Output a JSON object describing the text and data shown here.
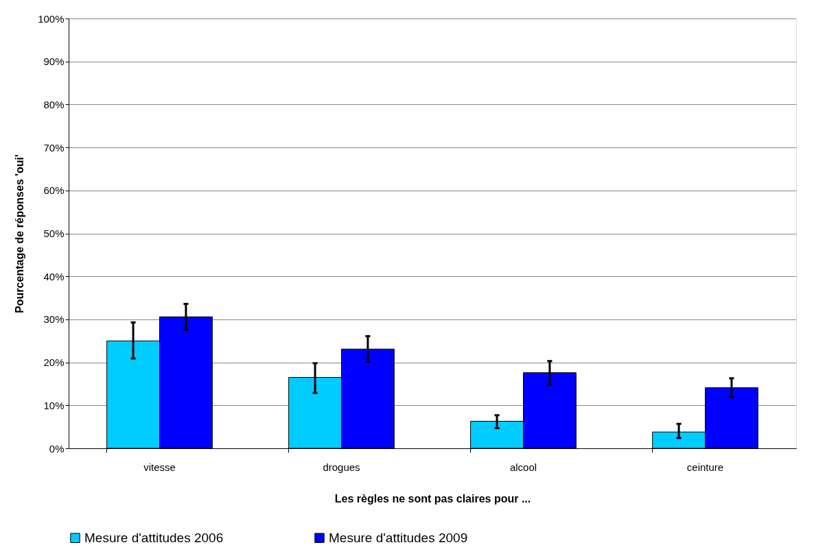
{
  "chart_data": {
    "type": "bar",
    "xlabel": "Les règles ne sont pas claires pour ...",
    "ylabel": "Pourcentage de réponses 'oui'",
    "categories": [
      "vitesse",
      "drogues",
      "alcool",
      "ceinture"
    ],
    "series": [
      {
        "name": "Mesure d'attitudes 2006",
        "color": "#00ccff",
        "values": [
          25.0,
          16.5,
          6.3,
          3.8
        ],
        "errors": [
          [
            20.9,
            29.3
          ],
          [
            12.9,
            19.8
          ],
          [
            4.7,
            7.7
          ],
          [
            2.4,
            5.7
          ]
        ]
      },
      {
        "name": "Mesure d'attitudes 2009",
        "color": "#0000ff",
        "values": [
          30.6,
          23.1,
          17.6,
          14.1
        ],
        "errors": [
          [
            27.6,
            33.6
          ],
          [
            20.1,
            26.1
          ],
          [
            14.8,
            20.3
          ],
          [
            11.9,
            16.3
          ]
        ]
      }
    ],
    "ylim": [
      0,
      100
    ],
    "yticks": [
      {
        "value": 0,
        "label": "0%"
      },
      {
        "value": 10,
        "label": "10%"
      },
      {
        "value": 20,
        "label": "20%"
      },
      {
        "value": 30,
        "label": "30%"
      },
      {
        "value": 40,
        "label": "40%"
      },
      {
        "value": 50,
        "label": "50%"
      },
      {
        "value": 60,
        "label": "60%"
      },
      {
        "value": 70,
        "label": "70%"
      },
      {
        "value": 80,
        "label": "80%"
      },
      {
        "value": 90,
        "label": "90%"
      },
      {
        "value": 100,
        "label": "100%"
      }
    ],
    "grid": "y",
    "legend": "bottom"
  }
}
